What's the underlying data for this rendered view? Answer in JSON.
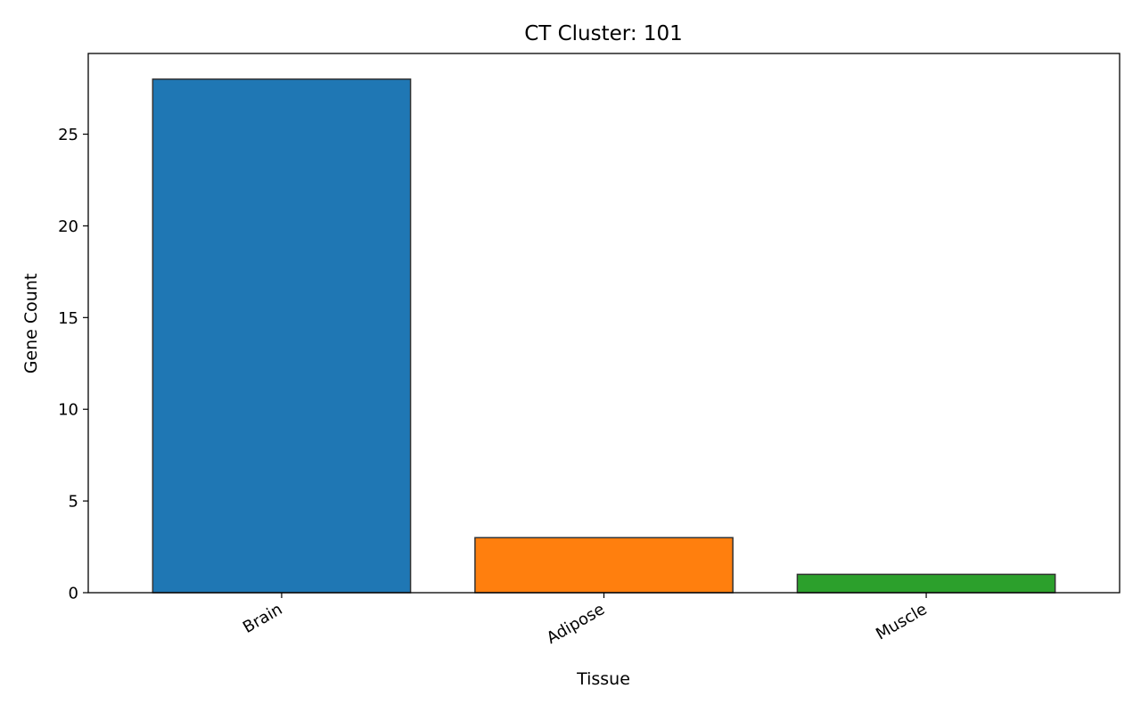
{
  "chart_data": {
    "type": "bar",
    "title": "CT Cluster: 101",
    "xlabel": "Tissue",
    "ylabel": "Gene Count",
    "categories": [
      "Brain",
      "Adipose",
      "Muscle"
    ],
    "values": [
      28,
      3,
      1
    ],
    "colors": [
      "#1f77b4",
      "#ff7f0e",
      "#2ca02c"
    ],
    "edge_color": "#333333",
    "ylim": [
      0,
      29.4
    ],
    "yticks": [
      0,
      5,
      10,
      15,
      20,
      25
    ],
    "ytick_labels": [
      "0",
      "5",
      "10",
      "15",
      "20",
      "25"
    ],
    "xtick_rotation": -30,
    "grid": false,
    "legend": "none"
  }
}
